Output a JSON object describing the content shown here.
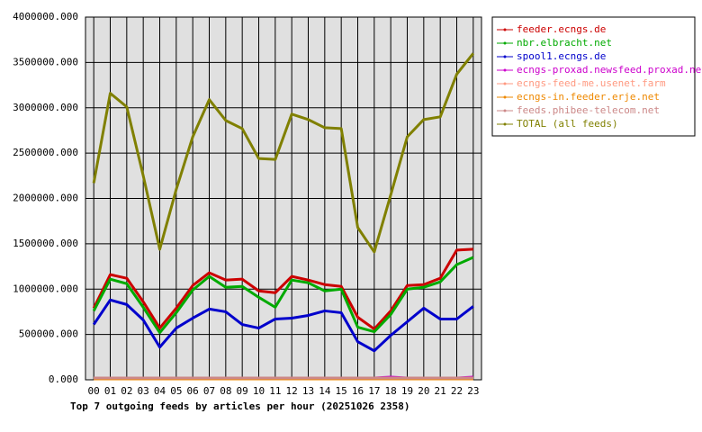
{
  "chart_data": {
    "type": "line",
    "title": "Top 7 outgoing feeds by articles per hour (20251026 2358)",
    "categories": [
      "00",
      "01",
      "02",
      "03",
      "04",
      "05",
      "06",
      "07",
      "08",
      "09",
      "10",
      "11",
      "12",
      "13",
      "14",
      "15",
      "16",
      "17",
      "18",
      "19",
      "20",
      "21",
      "22",
      "23"
    ],
    "series": [
      {
        "name": "feeder.ecngs.de",
        "color": "#cc0000",
        "values": [
          790000,
          1160000,
          1120000,
          860000,
          570000,
          790000,
          1040000,
          1180000,
          1100000,
          1110000,
          980000,
          960000,
          1140000,
          1100000,
          1050000,
          1030000,
          690000,
          560000,
          760000,
          1040000,
          1050000,
          1120000,
          1430000,
          1440000
        ]
      },
      {
        "name": "nbr.elbracht.net",
        "color": "#00aa00",
        "values": [
          760000,
          1110000,
          1060000,
          800000,
          520000,
          740000,
          990000,
          1140000,
          1020000,
          1030000,
          910000,
          800000,
          1100000,
          1070000,
          980000,
          1000000,
          580000,
          530000,
          720000,
          1000000,
          1020000,
          1080000,
          1270000,
          1350000
        ]
      },
      {
        "name": "spool1.ecngs.de",
        "color": "#0000cc",
        "values": [
          610000,
          880000,
          830000,
          660000,
          360000,
          570000,
          680000,
          780000,
          750000,
          610000,
          570000,
          670000,
          680000,
          710000,
          760000,
          740000,
          420000,
          320000,
          490000,
          640000,
          790000,
          670000,
          670000,
          810000
        ]
      },
      {
        "name": "ecngs-proxad.newsfeed.proxad.net",
        "color": "#cc00cc",
        "values": [
          20000,
          20000,
          20000,
          15000,
          20000,
          20000,
          20000,
          20000,
          20000,
          20000,
          20000,
          20000,
          20000,
          20000,
          20000,
          20000,
          20000,
          20000,
          30000,
          20000,
          20000,
          20000,
          20000,
          30000
        ]
      },
      {
        "name": "ecngs-feed-me.usenet.farm",
        "color": "#ff9980",
        "values": [
          20000,
          20000,
          20000,
          10000,
          20000,
          20000,
          20000,
          20000,
          20000,
          20000,
          20000,
          20000,
          20000,
          20000,
          20000,
          20000,
          20000,
          20000,
          20000,
          20000,
          20000,
          20000,
          20000,
          20000
        ]
      },
      {
        "name": "ecngs-in.feeder.erje.net",
        "color": "#ee8800",
        "values": [
          10000,
          10000,
          10000,
          10000,
          10000,
          10000,
          10000,
          10000,
          10000,
          10000,
          10000,
          10000,
          10000,
          10000,
          10000,
          10000,
          10000,
          10000,
          10000,
          10000,
          10000,
          10000,
          10000,
          10000
        ]
      },
      {
        "name": "feeds.phibee-telecom.net",
        "color": "#cc8888",
        "values": [
          20000,
          20000,
          20000,
          20000,
          20000,
          20000,
          20000,
          20000,
          20000,
          20000,
          20000,
          20000,
          20000,
          20000,
          20000,
          20000,
          20000,
          20000,
          20000,
          20000,
          20000,
          20000,
          20000,
          20000
        ]
      },
      {
        "name": "TOTAL (all feeds)",
        "color": "#808000",
        "values": [
          2170000,
          3160000,
          3010000,
          2250000,
          1440000,
          2100000,
          2680000,
          3090000,
          2860000,
          2770000,
          2440000,
          2430000,
          2930000,
          2870000,
          2780000,
          2770000,
          1680000,
          1410000,
          2040000,
          2680000,
          2870000,
          2900000,
          3370000,
          3600000
        ]
      }
    ],
    "ylim": [
      0,
      4000000
    ],
    "yticks": [
      {
        "value": 0,
        "label": "0.000"
      },
      {
        "value": 500000,
        "label": "500000.000"
      },
      {
        "value": 1000000,
        "label": "1000000.000"
      },
      {
        "value": 1500000,
        "label": "1500000.000"
      },
      {
        "value": 2000000,
        "label": "2000000.000"
      },
      {
        "value": 2500000,
        "label": "2500000.000"
      },
      {
        "value": 3000000,
        "label": "3000000.000"
      },
      {
        "value": 3500000,
        "label": "3500000.000"
      },
      {
        "value": 4000000,
        "label": "4000000.000"
      }
    ],
    "grid": true
  }
}
